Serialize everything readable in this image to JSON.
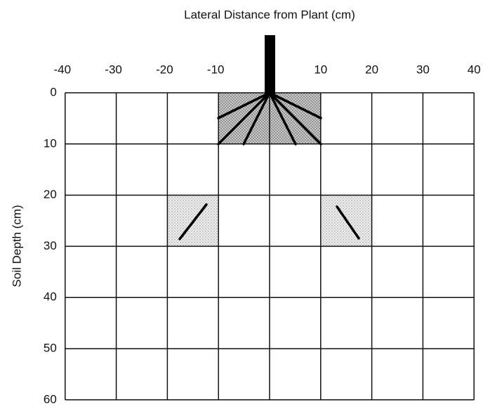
{
  "title": "Lateral Distance from Plant (cm)",
  "y_axis_label": "Soil Depth (cm)",
  "xticks": [
    -40,
    -30,
    -20,
    -10,
    10,
    20,
    30,
    40
  ],
  "grid_x": [
    -40,
    -30,
    -20,
    -10,
    0,
    10,
    20,
    30,
    40
  ],
  "yticks": [
    0,
    10,
    20,
    30,
    40,
    50,
    60
  ]
}
